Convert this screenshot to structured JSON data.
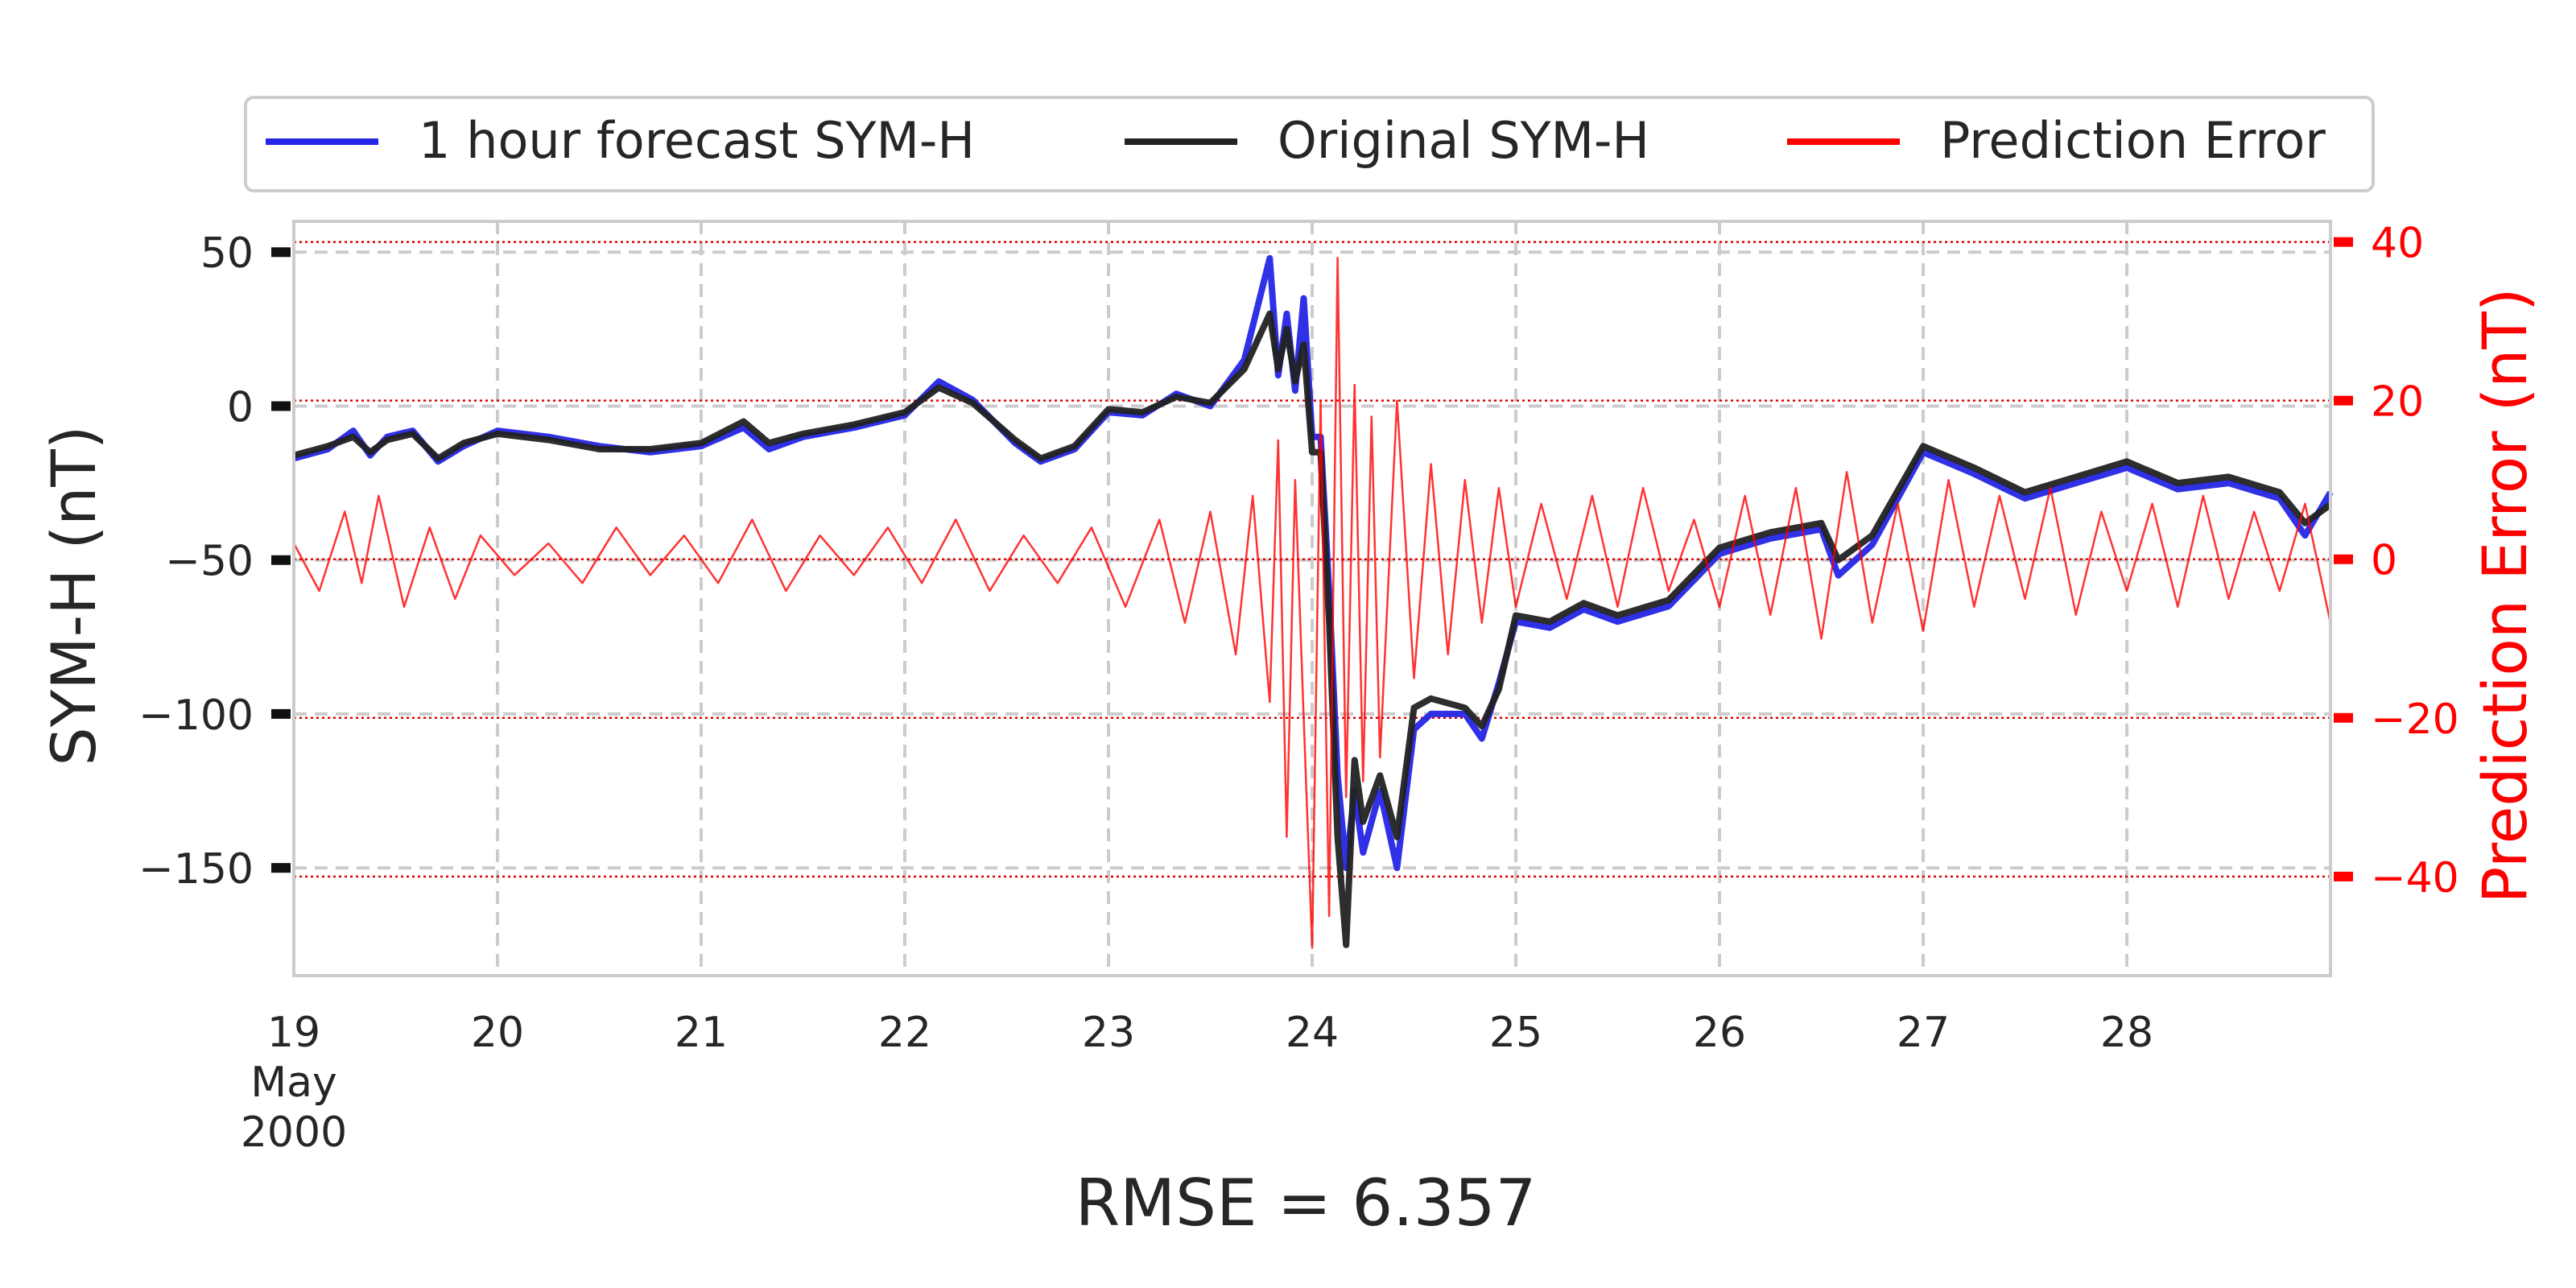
{
  "chart_data": {
    "type": "line",
    "x_unit": "date (May 2000)",
    "xlim": [
      "2000-05-19 00:00",
      "2000-05-29 00:00"
    ],
    "xticks": [
      {
        "t": "2000-05-19",
        "label": "19",
        "sublabel1": "May",
        "sublabel2": "2000"
      },
      {
        "t": "2000-05-20",
        "label": "20"
      },
      {
        "t": "2000-05-21",
        "label": "21"
      },
      {
        "t": "2000-05-22",
        "label": "22"
      },
      {
        "t": "2000-05-23",
        "label": "23"
      },
      {
        "t": "2000-05-24",
        "label": "24"
      },
      {
        "t": "2000-05-25",
        "label": "25"
      },
      {
        "t": "2000-05-26",
        "label": "26"
      },
      {
        "t": "2000-05-27",
        "label": "27"
      },
      {
        "t": "2000-05-28",
        "label": "28"
      }
    ],
    "ylabel": "SYM-H (nT)",
    "ylim": [
      -185,
      60
    ],
    "yticks": [
      50,
      0,
      -50,
      -100,
      -150
    ],
    "ytick_labels": [
      "50",
      "0",
      "−50",
      "−100",
      "−150"
    ],
    "y2label": "Prediction Error (nT)",
    "y2lim": [
      -52.5,
      42.6
    ],
    "y2ticks": [
      40,
      20,
      0,
      -20,
      -40
    ],
    "y2tick_labels": [
      "40",
      "20",
      "0",
      "−20",
      "−40"
    ],
    "bottom_text": "RMSE = 6.357",
    "legend_position": "top-center (outside plot)",
    "grid": true,
    "series": [
      {
        "name": "1 hour forecast SYM-H",
        "axis": "left",
        "color": "#2525e6",
        "points": [
          [
            "2000-05-19 00:00",
            -17
          ],
          [
            "2000-05-19 04:00",
            -14
          ],
          [
            "2000-05-19 07:00",
            -8
          ],
          [
            "2000-05-19 09:00",
            -16
          ],
          [
            "2000-05-19 11:00",
            -10
          ],
          [
            "2000-05-19 14:00",
            -8
          ],
          [
            "2000-05-19 17:00",
            -18
          ],
          [
            "2000-05-19 20:00",
            -13
          ],
          [
            "2000-05-20 00:00",
            -8
          ],
          [
            "2000-05-20 06:00",
            -10
          ],
          [
            "2000-05-20 12:00",
            -13
          ],
          [
            "2000-05-20 18:00",
            -15
          ],
          [
            "2000-05-21 00:00",
            -13
          ],
          [
            "2000-05-21 05:00",
            -7
          ],
          [
            "2000-05-21 08:00",
            -14
          ],
          [
            "2000-05-21 12:00",
            -10
          ],
          [
            "2000-05-21 18:00",
            -7
          ],
          [
            "2000-05-22 00:00",
            -3
          ],
          [
            "2000-05-22 04:00",
            8
          ],
          [
            "2000-05-22 08:00",
            2
          ],
          [
            "2000-05-22 13:00",
            -12
          ],
          [
            "2000-05-22 16:00",
            -18
          ],
          [
            "2000-05-22 20:00",
            -14
          ],
          [
            "2000-05-23 00:00",
            -2
          ],
          [
            "2000-05-23 04:00",
            -3
          ],
          [
            "2000-05-23 08:00",
            4
          ],
          [
            "2000-05-23 12:00",
            0
          ],
          [
            "2000-05-23 16:00",
            15
          ],
          [
            "2000-05-23 19:00",
            48
          ],
          [
            "2000-05-23 20:00",
            10
          ],
          [
            "2000-05-23 21:00",
            30
          ],
          [
            "2000-05-23 22:00",
            5
          ],
          [
            "2000-05-23 23:00",
            35
          ],
          [
            "2000-05-24 00:00",
            -10
          ],
          [
            "2000-05-24 01:00",
            -10
          ],
          [
            "2000-05-24 02:00",
            -60
          ],
          [
            "2000-05-24 03:00",
            -120
          ],
          [
            "2000-05-24 04:00",
            -150
          ],
          [
            "2000-05-24 05:00",
            -125
          ],
          [
            "2000-05-24 06:00",
            -145
          ],
          [
            "2000-05-24 08:00",
            -125
          ],
          [
            "2000-05-24 10:00",
            -150
          ],
          [
            "2000-05-24 12:00",
            -105
          ],
          [
            "2000-05-24 14:00",
            -100
          ],
          [
            "2000-05-24 18:00",
            -100
          ],
          [
            "2000-05-24 20:00",
            -108
          ],
          [
            "2000-05-24 22:00",
            -90
          ],
          [
            "2000-05-25 00:00",
            -70
          ],
          [
            "2000-05-25 04:00",
            -72
          ],
          [
            "2000-05-25 08:00",
            -66
          ],
          [
            "2000-05-25 12:00",
            -70
          ],
          [
            "2000-05-25 18:00",
            -65
          ],
          [
            "2000-05-26 00:00",
            -48
          ],
          [
            "2000-05-26 06:00",
            -43
          ],
          [
            "2000-05-26 12:00",
            -40
          ],
          [
            "2000-05-26 14:00",
            -55
          ],
          [
            "2000-05-26 18:00",
            -45
          ],
          [
            "2000-05-27 00:00",
            -15
          ],
          [
            "2000-05-27 06:00",
            -22
          ],
          [
            "2000-05-27 12:00",
            -30
          ],
          [
            "2000-05-27 18:00",
            -25
          ],
          [
            "2000-05-28 00:00",
            -20
          ],
          [
            "2000-05-28 06:00",
            -27
          ],
          [
            "2000-05-28 12:00",
            -25
          ],
          [
            "2000-05-28 18:00",
            -30
          ],
          [
            "2000-05-28 21:00",
            -42
          ],
          [
            "2000-05-29 00:00",
            -28
          ]
        ]
      },
      {
        "name": "Original SYM-H",
        "axis": "left",
        "color": "#222222",
        "points": [
          [
            "2000-05-19 00:00",
            -16
          ],
          [
            "2000-05-19 04:00",
            -13
          ],
          [
            "2000-05-19 07:00",
            -10
          ],
          [
            "2000-05-19 09:00",
            -15
          ],
          [
            "2000-05-19 11:00",
            -11
          ],
          [
            "2000-05-19 14:00",
            -9
          ],
          [
            "2000-05-19 17:00",
            -17
          ],
          [
            "2000-05-19 20:00",
            -12
          ],
          [
            "2000-05-20 00:00",
            -9
          ],
          [
            "2000-05-20 06:00",
            -11
          ],
          [
            "2000-05-20 12:00",
            -14
          ],
          [
            "2000-05-20 18:00",
            -14
          ],
          [
            "2000-05-21 00:00",
            -12
          ],
          [
            "2000-05-21 05:00",
            -5
          ],
          [
            "2000-05-21 08:00",
            -12
          ],
          [
            "2000-05-21 12:00",
            -9
          ],
          [
            "2000-05-21 18:00",
            -6
          ],
          [
            "2000-05-22 00:00",
            -2
          ],
          [
            "2000-05-22 04:00",
            6
          ],
          [
            "2000-05-22 08:00",
            1
          ],
          [
            "2000-05-22 13:00",
            -11
          ],
          [
            "2000-05-22 16:00",
            -17
          ],
          [
            "2000-05-22 20:00",
            -13
          ],
          [
            "2000-05-23 00:00",
            -1
          ],
          [
            "2000-05-23 04:00",
            -2
          ],
          [
            "2000-05-23 08:00",
            3
          ],
          [
            "2000-05-23 12:00",
            1
          ],
          [
            "2000-05-23 16:00",
            12
          ],
          [
            "2000-05-23 19:00",
            30
          ],
          [
            "2000-05-23 20:00",
            12
          ],
          [
            "2000-05-23 21:00",
            25
          ],
          [
            "2000-05-23 22:00",
            8
          ],
          [
            "2000-05-23 23:00",
            20
          ],
          [
            "2000-05-24 00:00",
            -15
          ],
          [
            "2000-05-24 01:00",
            -15
          ],
          [
            "2000-05-24 02:00",
            -70
          ],
          [
            "2000-05-24 03:00",
            -140
          ],
          [
            "2000-05-24 04:00",
            -175
          ],
          [
            "2000-05-24 05:00",
            -115
          ],
          [
            "2000-05-24 06:00",
            -135
          ],
          [
            "2000-05-24 08:00",
            -120
          ],
          [
            "2000-05-24 10:00",
            -140
          ],
          [
            "2000-05-24 12:00",
            -98
          ],
          [
            "2000-05-24 14:00",
            -95
          ],
          [
            "2000-05-24 18:00",
            -98
          ],
          [
            "2000-05-24 20:00",
            -104
          ],
          [
            "2000-05-24 22:00",
            -92
          ],
          [
            "2000-05-25 00:00",
            -68
          ],
          [
            "2000-05-25 04:00",
            -70
          ],
          [
            "2000-05-25 08:00",
            -64
          ],
          [
            "2000-05-25 12:00",
            -68
          ],
          [
            "2000-05-25 18:00",
            -63
          ],
          [
            "2000-05-26 00:00",
            -46
          ],
          [
            "2000-05-26 06:00",
            -41
          ],
          [
            "2000-05-26 12:00",
            -38
          ],
          [
            "2000-05-26 14:00",
            -50
          ],
          [
            "2000-05-26 18:00",
            -42
          ],
          [
            "2000-05-27 00:00",
            -13
          ],
          [
            "2000-05-27 06:00",
            -20
          ],
          [
            "2000-05-27 12:00",
            -28
          ],
          [
            "2000-05-27 18:00",
            -23
          ],
          [
            "2000-05-28 00:00",
            -18
          ],
          [
            "2000-05-28 06:00",
            -25
          ],
          [
            "2000-05-28 12:00",
            -23
          ],
          [
            "2000-05-28 18:00",
            -28
          ],
          [
            "2000-05-28 21:00",
            -38
          ],
          [
            "2000-05-29 00:00",
            -32
          ]
        ]
      },
      {
        "name": "Prediction Error",
        "axis": "right",
        "color": "#ff0000",
        "points": [
          [
            "2000-05-19 00:00",
            2
          ],
          [
            "2000-05-19 03:00",
            -4
          ],
          [
            "2000-05-19 06:00",
            6
          ],
          [
            "2000-05-19 08:00",
            -3
          ],
          [
            "2000-05-19 10:00",
            8
          ],
          [
            "2000-05-19 13:00",
            -6
          ],
          [
            "2000-05-19 16:00",
            4
          ],
          [
            "2000-05-19 19:00",
            -5
          ],
          [
            "2000-05-19 22:00",
            3
          ],
          [
            "2000-05-20 02:00",
            -2
          ],
          [
            "2000-05-20 06:00",
            2
          ],
          [
            "2000-05-20 10:00",
            -3
          ],
          [
            "2000-05-20 14:00",
            4
          ],
          [
            "2000-05-20 18:00",
            -2
          ],
          [
            "2000-05-20 22:00",
            3
          ],
          [
            "2000-05-21 02:00",
            -3
          ],
          [
            "2000-05-21 06:00",
            5
          ],
          [
            "2000-05-21 10:00",
            -4
          ],
          [
            "2000-05-21 14:00",
            3
          ],
          [
            "2000-05-21 18:00",
            -2
          ],
          [
            "2000-05-21 22:00",
            4
          ],
          [
            "2000-05-22 02:00",
            -3
          ],
          [
            "2000-05-22 06:00",
            5
          ],
          [
            "2000-05-22 10:00",
            -4
          ],
          [
            "2000-05-22 14:00",
            3
          ],
          [
            "2000-05-22 18:00",
            -3
          ],
          [
            "2000-05-22 22:00",
            4
          ],
          [
            "2000-05-23 02:00",
            -6
          ],
          [
            "2000-05-23 06:00",
            5
          ],
          [
            "2000-05-23 09:00",
            -8
          ],
          [
            "2000-05-23 12:00",
            6
          ],
          [
            "2000-05-23 15:00",
            -12
          ],
          [
            "2000-05-23 17:00",
            8
          ],
          [
            "2000-05-23 19:00",
            -18
          ],
          [
            "2000-05-23 20:00",
            15
          ],
          [
            "2000-05-23 21:00",
            -35
          ],
          [
            "2000-05-23 22:00",
            10
          ],
          [
            "2000-05-23 23:00",
            -20
          ],
          [
            "2000-05-24 00:00",
            -49
          ],
          [
            "2000-05-24 01:00",
            20
          ],
          [
            "2000-05-24 02:00",
            -45
          ],
          [
            "2000-05-24 03:00",
            38
          ],
          [
            "2000-05-24 04:00",
            -30
          ],
          [
            "2000-05-24 05:00",
            22
          ],
          [
            "2000-05-24 06:00",
            -28
          ],
          [
            "2000-05-24 07:00",
            18
          ],
          [
            "2000-05-24 08:00",
            -25
          ],
          [
            "2000-05-24 10:00",
            20
          ],
          [
            "2000-05-24 12:00",
            -15
          ],
          [
            "2000-05-24 14:00",
            12
          ],
          [
            "2000-05-24 16:00",
            -12
          ],
          [
            "2000-05-24 18:00",
            10
          ],
          [
            "2000-05-24 20:00",
            -8
          ],
          [
            "2000-05-24 22:00",
            9
          ],
          [
            "2000-05-25 00:00",
            -6
          ],
          [
            "2000-05-25 03:00",
            7
          ],
          [
            "2000-05-25 06:00",
            -5
          ],
          [
            "2000-05-25 09:00",
            8
          ],
          [
            "2000-05-25 12:00",
            -6
          ],
          [
            "2000-05-25 15:00",
            9
          ],
          [
            "2000-05-25 18:00",
            -4
          ],
          [
            "2000-05-25 21:00",
            5
          ],
          [
            "2000-05-26 00:00",
            -6
          ],
          [
            "2000-05-26 03:00",
            8
          ],
          [
            "2000-05-26 06:00",
            -7
          ],
          [
            "2000-05-26 09:00",
            9
          ],
          [
            "2000-05-26 12:00",
            -10
          ],
          [
            "2000-05-26 15:00",
            11
          ],
          [
            "2000-05-26 18:00",
            -8
          ],
          [
            "2000-05-26 21:00",
            7
          ],
          [
            "2000-05-27 00:00",
            -9
          ],
          [
            "2000-05-27 03:00",
            10
          ],
          [
            "2000-05-27 06:00",
            -6
          ],
          [
            "2000-05-27 09:00",
            8
          ],
          [
            "2000-05-27 12:00",
            -5
          ],
          [
            "2000-05-27 15:00",
            9
          ],
          [
            "2000-05-27 18:00",
            -7
          ],
          [
            "2000-05-27 21:00",
            6
          ],
          [
            "2000-05-28 00:00",
            -4
          ],
          [
            "2000-05-28 03:00",
            7
          ],
          [
            "2000-05-28 06:00",
            -6
          ],
          [
            "2000-05-28 09:00",
            8
          ],
          [
            "2000-05-28 12:00",
            -5
          ],
          [
            "2000-05-28 15:00",
            6
          ],
          [
            "2000-05-28 18:00",
            -4
          ],
          [
            "2000-05-28 21:00",
            7
          ],
          [
            "2000-05-29 00:00",
            -8
          ]
        ]
      }
    ]
  }
}
